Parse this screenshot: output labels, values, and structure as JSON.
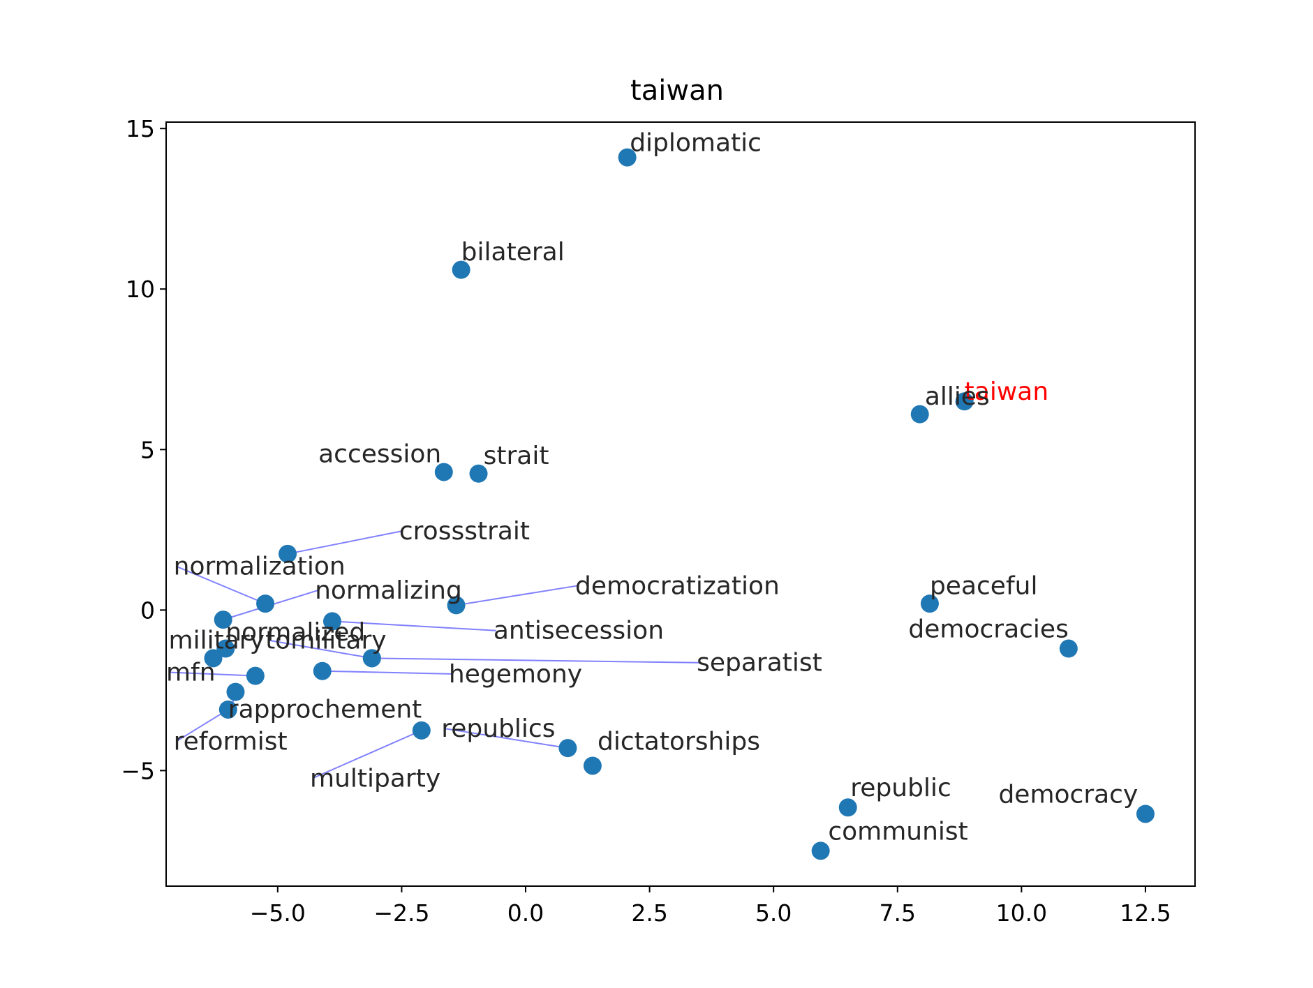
{
  "chart_data": {
    "type": "scatter",
    "title": "taiwan",
    "xlabel": "",
    "ylabel": "",
    "xlim": [
      -7.25,
      13.5
    ],
    "ylim": [
      -8.6,
      15.2
    ],
    "xticks": [
      -5.0,
      -2.5,
      0.0,
      2.5,
      5.0,
      7.5,
      10.0,
      12.5
    ],
    "xtick_labels": [
      "−5.0",
      "−2.5",
      "0.0",
      "2.5",
      "5.0",
      "7.5",
      "10.0",
      "12.5"
    ],
    "yticks": [
      -5,
      0,
      5,
      10,
      15
    ],
    "ytick_labels": [
      "−5",
      "0",
      "5",
      "10",
      "15"
    ],
    "grid": false,
    "marker_color": "#1f77b4",
    "highlight_color": "#ff0000",
    "leader_color": "#8080ff",
    "points": [
      {
        "label": "diplomatic",
        "x": 2.05,
        "y": 14.1,
        "lx": 2.1,
        "ly": 14.3,
        "anchor": "start"
      },
      {
        "label": "bilateral",
        "x": -1.3,
        "y": 10.6,
        "lx": -1.3,
        "ly": 10.9,
        "anchor": "start"
      },
      {
        "label": "taiwan",
        "x": 8.85,
        "y": 6.5,
        "lx": 8.85,
        "ly": 6.55,
        "anchor": "start",
        "highlight": true
      },
      {
        "label": "allies",
        "x": 7.95,
        "y": 6.1,
        "lx": 8.05,
        "ly": 6.4,
        "anchor": "start"
      },
      {
        "label": "accession",
        "x": -1.65,
        "y": 4.3,
        "lx": -1.7,
        "ly": 4.6,
        "anchor": "end"
      },
      {
        "label": "strait",
        "x": -0.95,
        "y": 4.25,
        "lx": -0.85,
        "ly": 4.55,
        "anchor": "start"
      },
      {
        "label": "crossstrait",
        "x": -4.8,
        "y": 1.75,
        "lx": -2.55,
        "ly": 2.2,
        "anchor": "start",
        "leader": true
      },
      {
        "label": "normalization",
        "x": -5.25,
        "y": 0.2,
        "lx": -7.1,
        "ly": 1.1,
        "anchor": "start",
        "leader": true
      },
      {
        "label": "normalizing",
        "x": -6.1,
        "y": -0.3,
        "lx": -4.25,
        "ly": 0.35,
        "anchor": "start",
        "leader": true
      },
      {
        "label": "democratization",
        "x": -1.4,
        "y": 0.15,
        "lx": 1.0,
        "ly": 0.5,
        "anchor": "start",
        "leader": true
      },
      {
        "label": "peaceful",
        "x": 8.15,
        "y": 0.2,
        "lx": 8.15,
        "ly": 0.5,
        "anchor": "start"
      },
      {
        "label": "antisecession",
        "x": -3.9,
        "y": -0.35,
        "lx": -0.65,
        "ly": -0.9,
        "anchor": "start",
        "leader": true
      },
      {
        "label": "democracies",
        "x": 10.95,
        "y": -1.2,
        "lx": 10.95,
        "ly": -0.85,
        "anchor": "end"
      },
      {
        "label": "normalized",
        "x": -6.05,
        "y": -1.2,
        "lx": -6.05,
        "ly": -0.95,
        "anchor": "start"
      },
      {
        "label": "military",
        "x": -6.3,
        "y": -1.5,
        "lx": -7.2,
        "ly": -1.2,
        "anchor": "start"
      },
      {
        "label": "tomilitary",
        "x": -3.1,
        "y": -1.5,
        "lx": -5.25,
        "ly": -1.2,
        "anchor": "start",
        "leader": true
      },
      {
        "label": "separatist",
        "x": -3.1,
        "y": -1.5,
        "lx": 3.45,
        "ly": -1.9,
        "anchor": "start",
        "leader": true
      },
      {
        "label": "hegemony",
        "x": -4.1,
        "y": -1.9,
        "lx": -1.55,
        "ly": -2.25,
        "anchor": "start",
        "leader": true
      },
      {
        "label": "mfn",
        "x": -5.45,
        "y": -2.05,
        "lx": -7.25,
        "ly": -2.2,
        "anchor": "start",
        "leader": true
      },
      {
        "label": "rapprochement",
        "x": -5.85,
        "y": -2.55,
        "lx": -6.0,
        "ly": -3.35,
        "anchor": "start",
        "leader": true
      },
      {
        "label": "reformist",
        "x": -6.0,
        "y": -3.1,
        "lx": -7.1,
        "ly": -4.35,
        "anchor": "start",
        "leader": true
      },
      {
        "label": "republics",
        "x": 0.85,
        "y": -4.3,
        "lx": -1.7,
        "ly": -3.95,
        "anchor": "start",
        "leader": true
      },
      {
        "label": "multiparty",
        "x": -2.1,
        "y": -3.75,
        "lx": -4.35,
        "ly": -5.5,
        "anchor": "start",
        "leader": true
      },
      {
        "label": "dictatorships",
        "x": 1.35,
        "y": -4.85,
        "lx": 1.45,
        "ly": -4.35,
        "anchor": "start"
      },
      {
        "label": "republic",
        "x": 6.5,
        "y": -6.15,
        "lx": 6.55,
        "ly": -5.8,
        "anchor": "start"
      },
      {
        "label": "democracy",
        "x": 12.5,
        "y": -6.35,
        "lx": 12.35,
        "ly": -6.0,
        "anchor": "end"
      },
      {
        "label": "communist",
        "x": 5.95,
        "y": -7.5,
        "lx": 6.1,
        "ly": -7.15,
        "anchor": "start"
      }
    ]
  }
}
